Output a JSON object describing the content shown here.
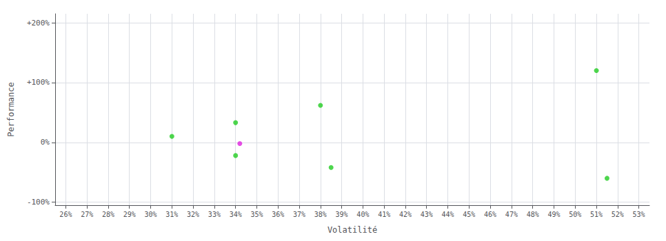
{
  "chart_data": {
    "type": "scatter",
    "xlabel": "Volatilité",
    "ylabel": "Performance",
    "series": [
      {
        "color": "#22cc22",
        "x": [
          0.31,
          0.34,
          0.34,
          0.38,
          0.385,
          0.51,
          0.515
        ],
        "values": [
          0.1,
          0.33,
          -0.22,
          0.62,
          -0.42,
          1.2,
          -0.6
        ]
      },
      {
        "color": "#dd22dd",
        "x": [
          0.342
        ],
        "values": [
          -0.02
        ]
      }
    ],
    "xlim": [
      0.255,
      0.535
    ],
    "ylim": [
      -1.05,
      2.15
    ],
    "xticks": [
      {
        "value": 0.26,
        "label": "26%"
      },
      {
        "value": 0.27,
        "label": "27%"
      },
      {
        "value": 0.28,
        "label": "28%"
      },
      {
        "value": 0.29,
        "label": "29%"
      },
      {
        "value": 0.3,
        "label": "30%"
      },
      {
        "value": 0.31,
        "label": "31%"
      },
      {
        "value": 0.32,
        "label": "32%"
      },
      {
        "value": 0.33,
        "label": "33%"
      },
      {
        "value": 0.34,
        "label": "34%"
      },
      {
        "value": 0.35,
        "label": "35%"
      },
      {
        "value": 0.36,
        "label": "36%"
      },
      {
        "value": 0.37,
        "label": "37%"
      },
      {
        "value": 0.38,
        "label": "38%"
      },
      {
        "value": 0.39,
        "label": "39%"
      },
      {
        "value": 0.4,
        "label": "40%"
      },
      {
        "value": 0.41,
        "label": "41%"
      },
      {
        "value": 0.42,
        "label": "42%"
      },
      {
        "value": 0.43,
        "label": "43%"
      },
      {
        "value": 0.44,
        "label": "44%"
      },
      {
        "value": 0.45,
        "label": "45%"
      },
      {
        "value": 0.46,
        "label": "46%"
      },
      {
        "value": 0.47,
        "label": "47%"
      },
      {
        "value": 0.48,
        "label": "48%"
      },
      {
        "value": 0.49,
        "label": "49%"
      },
      {
        "value": 0.5,
        "label": "50%"
      },
      {
        "value": 0.51,
        "label": "51%"
      },
      {
        "value": 0.52,
        "label": "52%"
      },
      {
        "value": 0.53,
        "label": "53%"
      }
    ],
    "yticks": [
      {
        "value": -1.0,
        "label": "-100%"
      },
      {
        "value": 0.0,
        "label": "0%"
      },
      {
        "value": 1.0,
        "label": "+100%"
      },
      {
        "value": 2.0,
        "label": "+200%"
      }
    ],
    "grid": true
  }
}
